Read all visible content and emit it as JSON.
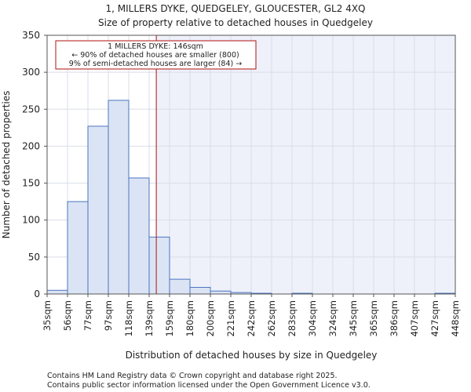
{
  "title_line1": "1, MILLERS DYKE, QUEDGELEY, GLOUCESTER, GL2 4XQ",
  "title_line2": "Size of property relative to detached houses in Quedgeley",
  "annotation": {
    "line1": "1 MILLERS DYKE: 146sqm",
    "line2": "← 90% of detached houses are smaller (800)",
    "line3": "9% of semi-detached houses are larger (84) →"
  },
  "footer": {
    "line1": "Contains HM Land Registry data © Crown copyright and database right 2025.",
    "line2": "Contains public sector information licensed under the Open Government Licence v3.0."
  },
  "colors": {
    "bar_fill": "#dbe4f4",
    "bar_stroke": "#4a74c0",
    "marker": "#b01010",
    "plot_bg_right": "#eef1fa",
    "grid": "#d9dde8"
  },
  "chart_data": {
    "type": "bar",
    "title": "Size of property relative to detached houses in Quedgeley",
    "xlabel": "Distribution of detached houses by size in Quedgeley",
    "ylabel": "Number of detached properties",
    "ylim": [
      0,
      350
    ],
    "yticks": [
      0,
      50,
      100,
      150,
      200,
      250,
      300,
      350
    ],
    "bin_edges_labels": [
      "35sqm",
      "56sqm",
      "77sqm",
      "97sqm",
      "118sqm",
      "139sqm",
      "159sqm",
      "180sqm",
      "200sqm",
      "221sqm",
      "242sqm",
      "262sqm",
      "283sqm",
      "304sqm",
      "324sqm",
      "345sqm",
      "365sqm",
      "386sqm",
      "407sqm",
      "427sqm",
      "448sqm"
    ],
    "values": [
      5,
      125,
      227,
      262,
      157,
      77,
      20,
      9,
      4,
      2,
      1,
      0,
      1,
      0,
      0,
      0,
      0,
      0,
      0,
      1
    ],
    "marker_value_sqm": 146,
    "marker_bin_position": 5.35,
    "grid": true
  }
}
